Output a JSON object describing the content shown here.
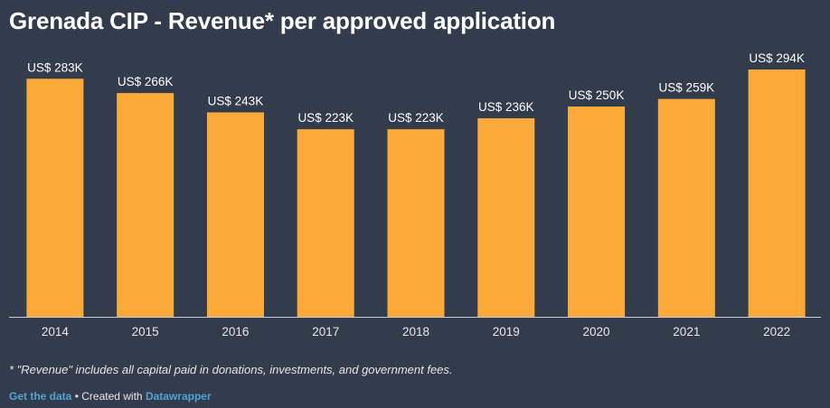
{
  "header": {
    "title": "Grenada CIP - Revenue* per approved application"
  },
  "chart_data": {
    "type": "bar",
    "title": "Grenada CIP - Revenue* per approved application",
    "categories": [
      "2014",
      "2015",
      "2016",
      "2017",
      "2018",
      "2019",
      "2020",
      "2021",
      "2022"
    ],
    "values": [
      283,
      266,
      243,
      223,
      223,
      236,
      250,
      259,
      294
    ],
    "value_labels": [
      "US$ 283K",
      "US$ 266K",
      "US$ 243K",
      "US$ 223K",
      "US$ 223K",
      "US$ 236K",
      "US$ 250K",
      "US$ 259K",
      "US$ 294K"
    ],
    "unit": "US$ thousands",
    "xlabel": "",
    "ylabel": "",
    "ylim": [
      0,
      294
    ],
    "grid": false,
    "bar_color": "#fbaa39"
  },
  "footnote": "* \"Revenue\" includes all capital paid in donations, investments, and government fees.",
  "footer": {
    "get_data_label": "Get the data",
    "separator": " • Created with ",
    "tool_label": "Datawrapper"
  },
  "colors": {
    "background": "#333c4d",
    "bar": "#fbaa39",
    "link": "#4fa3d1"
  }
}
